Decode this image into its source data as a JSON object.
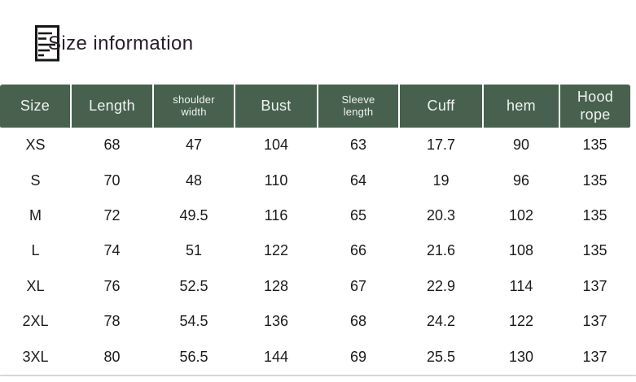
{
  "section": {
    "title": "Size information",
    "icon": "document-lines-icon"
  },
  "colors": {
    "header_background": "#48614f",
    "header_text": "#eff4ef",
    "body_text": "#1b1b1b",
    "title_text": "#281c28",
    "divider": "#d6d6d6"
  },
  "chart_data": {
    "type": "table",
    "title": "Size information",
    "columns": [
      {
        "id": "size",
        "label": "Size"
      },
      {
        "id": "length",
        "label": "Length"
      },
      {
        "id": "shoulder-width",
        "label": "shoulder\nwidth"
      },
      {
        "id": "bust",
        "label": "Bust"
      },
      {
        "id": "sleeve-length",
        "label": "Sleeve\nlength"
      },
      {
        "id": "cuff",
        "label": "Cuff"
      },
      {
        "id": "hem",
        "label": "hem"
      },
      {
        "id": "hood-rope",
        "label": "Hood\nrope"
      }
    ],
    "rows": [
      [
        "XS",
        "68",
        "47",
        "104",
        "63",
        "17.7",
        "90",
        "135"
      ],
      [
        "S",
        "70",
        "48",
        "110",
        "64",
        "19",
        "96",
        "135"
      ],
      [
        "M",
        "72",
        "49.5",
        "116",
        "65",
        "20.3",
        "102",
        "135"
      ],
      [
        "L",
        "74",
        "51",
        "122",
        "66",
        "21.6",
        "108",
        "135"
      ],
      [
        "XL",
        "76",
        "52.5",
        "128",
        "67",
        "22.9",
        "114",
        "137"
      ],
      [
        "2XL",
        "78",
        "54.5",
        "136",
        "68",
        "24.2",
        "122",
        "137"
      ],
      [
        "3XL",
        "80",
        "56.5",
        "144",
        "69",
        "25.5",
        "130",
        "137"
      ]
    ]
  }
}
